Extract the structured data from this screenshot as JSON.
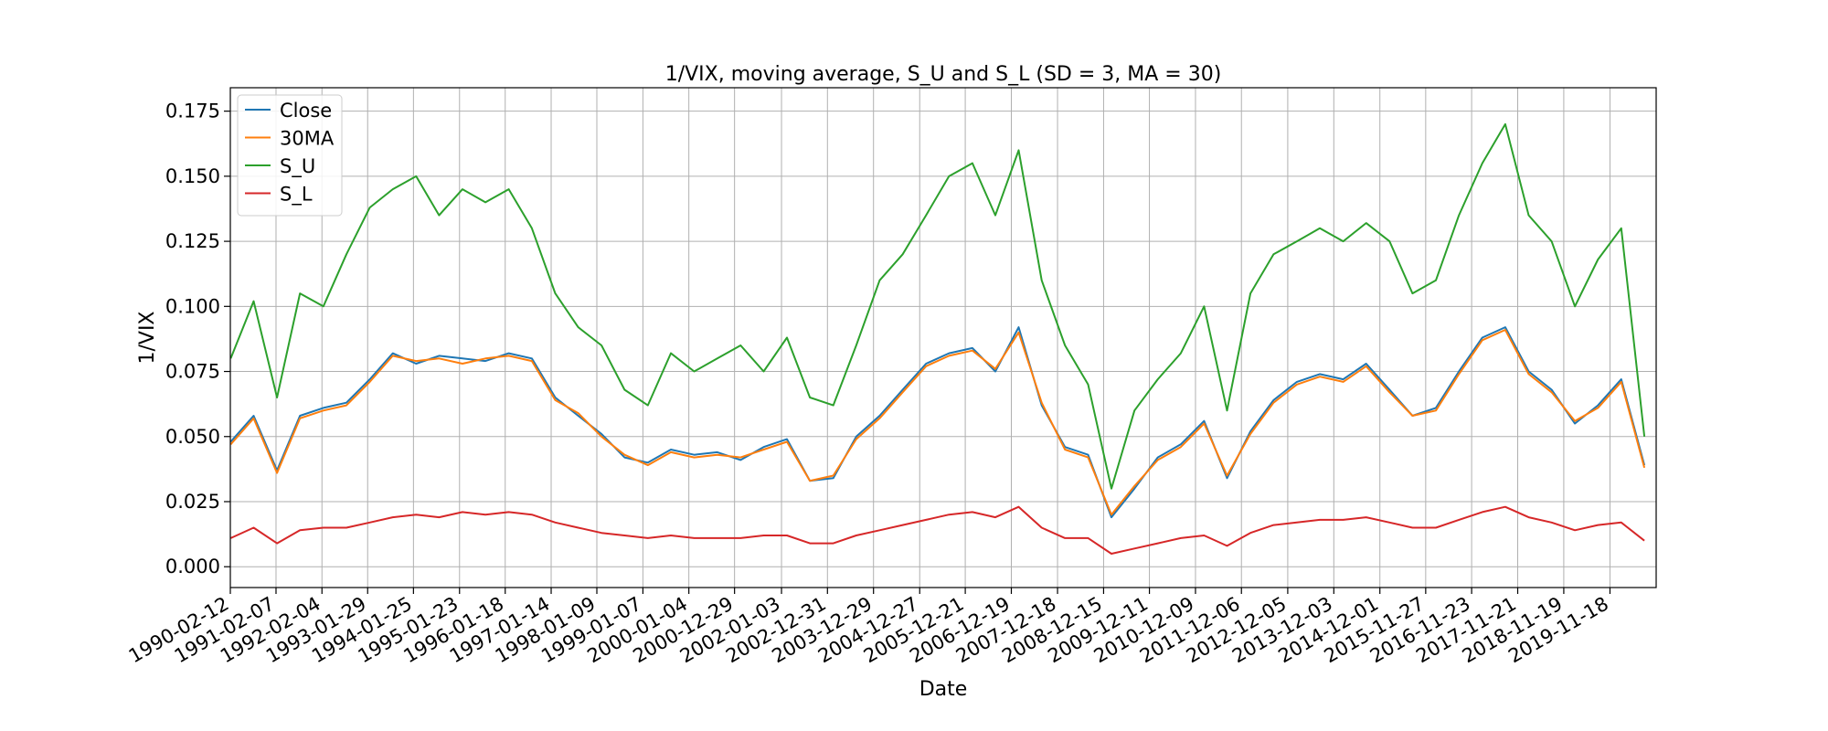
{
  "chart_data": {
    "type": "line",
    "title": "1/VIX, moving average, S_U and S_L (SD = 3, MA = 30)",
    "xlabel": "Date",
    "ylabel": "1/VIX",
    "xlim": [
      "1990-02-12",
      "2020-11-16"
    ],
    "ylim": [
      -0.008,
      0.184
    ],
    "grid": true,
    "legend_position": "top-left",
    "x_tick_labels": [
      "1990-02-12",
      "1991-02-07",
      "1992-02-04",
      "1993-01-29",
      "1994-01-25",
      "1995-01-23",
      "1996-01-18",
      "1997-01-14",
      "1998-01-09",
      "1999-01-07",
      "2000-01-04",
      "2000-12-29",
      "2002-01-03",
      "2002-12-31",
      "2003-12-29",
      "2004-12-27",
      "2005-12-21",
      "2006-12-19",
      "2007-12-18",
      "2008-12-15",
      "2009-12-11",
      "2010-12-09",
      "2011-12-06",
      "2012-12-05",
      "2013-12-03",
      "2014-12-01",
      "2015-11-27",
      "2016-11-23",
      "2017-11-21",
      "2018-11-19",
      "2019-11-18"
    ],
    "y_ticks": [
      0.0,
      0.025,
      0.05,
      0.075,
      0.1,
      0.125,
      0.15,
      0.175
    ],
    "y_tick_labels": [
      "0.000",
      "0.025",
      "0.050",
      "0.075",
      "0.100",
      "0.125",
      "0.150",
      "0.175"
    ],
    "x": [
      "1990-02",
      "1990-08",
      "1991-02",
      "1991-08",
      "1992-02",
      "1992-08",
      "1993-02",
      "1993-08",
      "1994-02",
      "1994-08",
      "1995-02",
      "1995-08",
      "1996-02",
      "1996-08",
      "1997-02",
      "1997-08",
      "1998-02",
      "1998-08",
      "1999-02",
      "1999-08",
      "2000-02",
      "2000-08",
      "2001-02",
      "2001-08",
      "2002-02",
      "2002-08",
      "2003-02",
      "2003-08",
      "2004-02",
      "2004-08",
      "2005-02",
      "2005-08",
      "2006-02",
      "2006-08",
      "2007-02",
      "2007-08",
      "2008-02",
      "2008-08",
      "2009-02",
      "2009-08",
      "2010-02",
      "2010-08",
      "2011-02",
      "2011-08",
      "2012-02",
      "2012-08",
      "2013-02",
      "2013-08",
      "2014-02",
      "2014-08",
      "2015-02",
      "2015-08",
      "2016-02",
      "2016-08",
      "2017-02",
      "2017-08",
      "2018-02",
      "2018-08",
      "2019-02",
      "2019-08",
      "2020-02",
      "2020-08"
    ],
    "series": [
      {
        "name": "Close",
        "color": "#1f77b4",
        "values": [
          0.048,
          0.058,
          0.037,
          0.058,
          0.061,
          0.063,
          0.072,
          0.082,
          0.078,
          0.081,
          0.08,
          0.079,
          0.082,
          0.08,
          0.065,
          0.058,
          0.051,
          0.042,
          0.04,
          0.045,
          0.043,
          0.044,
          0.041,
          0.046,
          0.049,
          0.033,
          0.034,
          0.05,
          0.058,
          0.068,
          0.078,
          0.082,
          0.084,
          0.075,
          0.092,
          0.062,
          0.046,
          0.043,
          0.019,
          0.03,
          0.042,
          0.047,
          0.056,
          0.034,
          0.052,
          0.064,
          0.071,
          0.074,
          0.072,
          0.078,
          0.068,
          0.058,
          0.061,
          0.075,
          0.088,
          0.092,
          0.075,
          0.068,
          0.055,
          0.062,
          0.072,
          0.039
        ]
      },
      {
        "name": "30MA",
        "color": "#ff7f0e",
        "values": [
          0.047,
          0.057,
          0.036,
          0.057,
          0.06,
          0.062,
          0.071,
          0.081,
          0.079,
          0.08,
          0.078,
          0.08,
          0.081,
          0.079,
          0.064,
          0.059,
          0.05,
          0.043,
          0.039,
          0.044,
          0.042,
          0.043,
          0.042,
          0.045,
          0.048,
          0.033,
          0.035,
          0.049,
          0.057,
          0.067,
          0.077,
          0.081,
          0.083,
          0.076,
          0.09,
          0.063,
          0.045,
          0.042,
          0.02,
          0.031,
          0.041,
          0.046,
          0.055,
          0.035,
          0.051,
          0.063,
          0.07,
          0.073,
          0.071,
          0.077,
          0.067,
          0.058,
          0.06,
          0.074,
          0.087,
          0.091,
          0.074,
          0.067,
          0.056,
          0.061,
          0.071,
          0.038
        ]
      },
      {
        "name": "S_U",
        "color": "#2ca02c",
        "values": [
          0.08,
          0.102,
          0.065,
          0.105,
          0.1,
          0.12,
          0.138,
          0.145,
          0.15,
          0.135,
          0.145,
          0.14,
          0.145,
          0.13,
          0.105,
          0.092,
          0.085,
          0.068,
          0.062,
          0.082,
          0.075,
          0.08,
          0.085,
          0.075,
          0.088,
          0.065,
          0.062,
          0.085,
          0.11,
          0.12,
          0.135,
          0.15,
          0.155,
          0.135,
          0.16,
          0.11,
          0.085,
          0.07,
          0.03,
          0.06,
          0.072,
          0.082,
          0.1,
          0.06,
          0.105,
          0.12,
          0.125,
          0.13,
          0.125,
          0.132,
          0.125,
          0.105,
          0.11,
          0.135,
          0.155,
          0.17,
          0.135,
          0.125,
          0.1,
          0.118,
          0.13,
          0.05
        ]
      },
      {
        "name": "S_L",
        "color": "#d62728",
        "values": [
          0.011,
          0.015,
          0.009,
          0.014,
          0.015,
          0.015,
          0.017,
          0.019,
          0.02,
          0.019,
          0.021,
          0.02,
          0.021,
          0.02,
          0.017,
          0.015,
          0.013,
          0.012,
          0.011,
          0.012,
          0.011,
          0.011,
          0.011,
          0.012,
          0.012,
          0.009,
          0.009,
          0.012,
          0.014,
          0.016,
          0.018,
          0.02,
          0.021,
          0.019,
          0.023,
          0.015,
          0.011,
          0.011,
          0.005,
          0.007,
          0.009,
          0.011,
          0.012,
          0.008,
          0.013,
          0.016,
          0.017,
          0.018,
          0.018,
          0.019,
          0.017,
          0.015,
          0.015,
          0.018,
          0.021,
          0.023,
          0.019,
          0.017,
          0.014,
          0.016,
          0.017,
          0.01
        ]
      }
    ]
  }
}
